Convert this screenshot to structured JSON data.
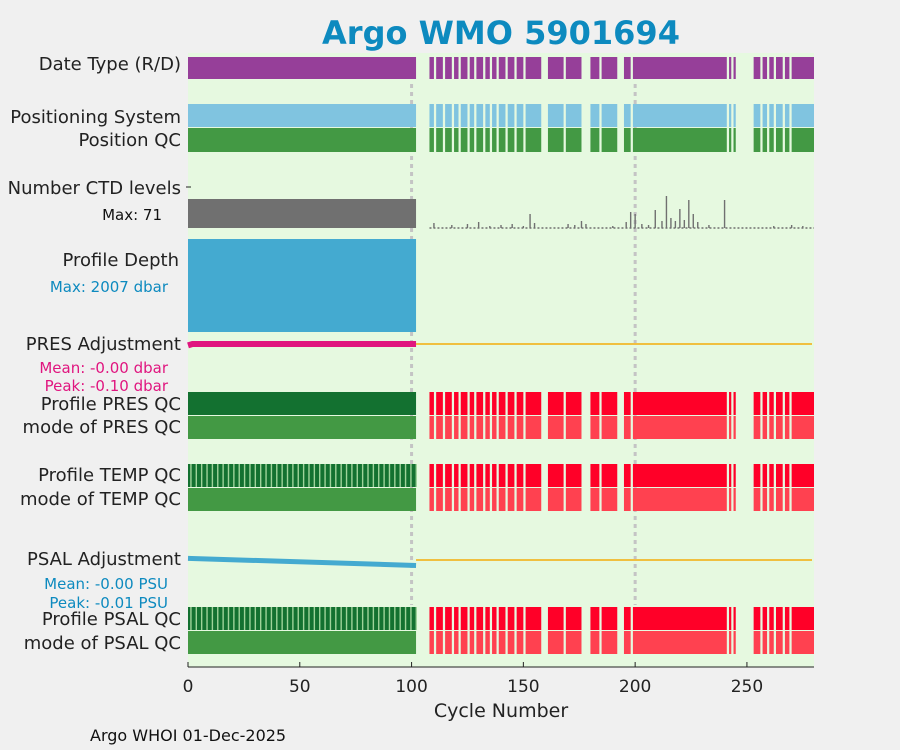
{
  "chart_data": {
    "type": "timeline",
    "title": "Argo WMO 5901694",
    "xlabel": "Cycle Number",
    "xlim": [
      0,
      280
    ],
    "xticks": [
      0,
      50,
      100,
      150,
      200,
      250
    ],
    "xtick_labels": [
      "0",
      "50",
      "100",
      "150",
      "200",
      "250"
    ],
    "reference_cycles": [
      100,
      200
    ],
    "cycle_ranges": {
      "dmode": [
        [
          0,
          102
        ]
      ],
      "realtime": [
        [
          108,
          280
        ]
      ]
    },
    "gaps": [
      [
        102,
        108
      ],
      [
        110,
        111
      ],
      [
        114,
        115
      ],
      [
        118,
        119
      ],
      [
        121,
        122
      ],
      [
        125,
        126
      ],
      [
        128,
        129
      ],
      [
        132,
        133
      ],
      [
        135,
        136
      ],
      [
        138,
        139
      ],
      [
        142,
        143
      ],
      [
        146,
        147
      ],
      [
        150,
        151
      ],
      [
        158,
        161
      ],
      [
        168,
        169
      ],
      [
        176,
        180
      ],
      [
        184,
        185
      ],
      [
        192,
        195
      ],
      [
        198,
        199
      ],
      [
        241,
        242
      ],
      [
        243,
        244
      ],
      [
        245,
        253
      ],
      [
        256,
        257
      ],
      [
        259,
        260
      ],
      [
        262,
        263
      ],
      [
        266,
        267
      ],
      [
        269,
        270
      ]
    ],
    "rows": [
      {
        "label": "Date Type (R/D)",
        "color": "#963f99"
      },
      {
        "label": "Positioning System",
        "color": "#80c4e0"
      },
      {
        "label": "Position QC",
        "color": "#439944"
      },
      {
        "label": "Number CTD levels",
        "note": "Max: 71",
        "color": "#707070",
        "max": 71
      },
      {
        "label": "Profile Depth",
        "note": "Max: 2007 dbar",
        "note_color": "#0d8abf",
        "color": "#44aad0",
        "max": 2007
      },
      {
        "label": "PRES Adjustment",
        "color": "#e0157f",
        "mean_label": "Mean: -0.00 dbar",
        "peak_label": "Peak: -0.10 dbar",
        "mean": -0.0,
        "peak": -0.1
      },
      {
        "label": "Profile PRES QC",
        "color_dmode": "#137130",
        "color_realtime": "#ff0028"
      },
      {
        "label": "mode of PRES QC",
        "color_dmode": "#439944",
        "color_realtime": "#ff4150"
      },
      {
        "label": "Profile TEMP QC",
        "color_dmode": "#137130",
        "color_realtime": "#ff0028"
      },
      {
        "label": "mode of TEMP QC",
        "color_dmode": "#439944",
        "color_realtime": "#ff4150"
      },
      {
        "label": "PSAL Adjustment",
        "color": "#44aad0",
        "mean_label": "Mean: -0.00 PSU",
        "peak_label": "Peak: -0.01 PSU",
        "mean": -0.0,
        "peak": -0.01,
        "start": 0.003,
        "end": -0.01
      },
      {
        "label": "Profile PSAL QC",
        "color_dmode": "#137130",
        "color_realtime": "#ff0028"
      },
      {
        "label": "mode of PSAL QC",
        "color_dmode": "#439944",
        "color_realtime": "#ff4150"
      }
    ],
    "ctd_levels": [
      [
        110,
        5
      ],
      [
        118,
        3
      ],
      [
        125,
        4
      ],
      [
        130,
        6
      ],
      [
        135,
        2
      ],
      [
        140,
        3
      ],
      [
        145,
        4
      ],
      [
        150,
        2
      ],
      [
        153,
        14
      ],
      [
        155,
        5
      ],
      [
        170,
        4
      ],
      [
        173,
        3
      ],
      [
        176,
        7
      ],
      [
        178,
        4
      ],
      [
        190,
        2
      ],
      [
        196,
        6
      ],
      [
        198,
        16
      ],
      [
        200,
        14
      ],
      [
        203,
        4
      ],
      [
        206,
        3
      ],
      [
        209,
        18
      ],
      [
        212,
        7
      ],
      [
        214,
        32
      ],
      [
        216,
        10
      ],
      [
        218,
        7
      ],
      [
        220,
        19
      ],
      [
        222,
        8
      ],
      [
        224,
        28
      ],
      [
        226,
        14
      ],
      [
        228,
        6
      ],
      [
        233,
        3
      ],
      [
        240,
        28
      ],
      [
        262,
        2
      ],
      [
        270,
        3
      ],
      [
        275,
        2
      ]
    ],
    "pres_adjustment": [
      [
        0,
        -0.1
      ],
      [
        2,
        0.0
      ],
      [
        102,
        0.0
      ]
    ],
    "psal_adjustment": [
      [
        0,
        0.003
      ],
      [
        102,
        -0.01
      ]
    ],
    "zero_line_color": "#f0c040",
    "panel_background": "#e6f9e0"
  },
  "footer": "Argo WHOI 01-Dec-2025"
}
